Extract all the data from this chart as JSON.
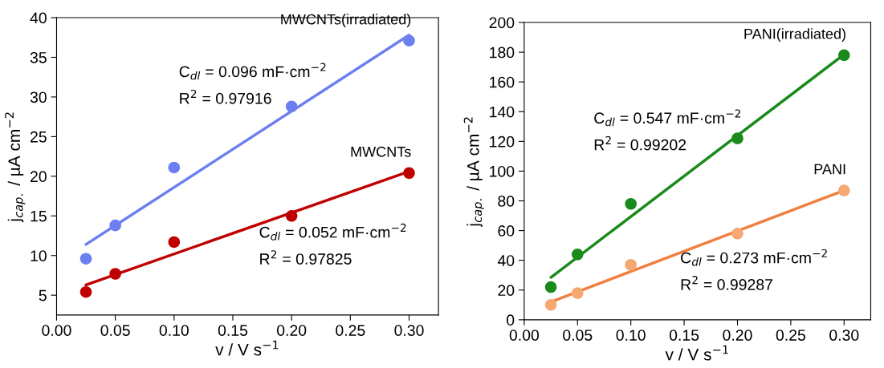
{
  "chart_data": [
    {
      "type": "scatter",
      "xlabel": "v / V s$^{−1}$",
      "ylabel": "j$_{cap.}$ / µA cm$^{−2}$",
      "xlim": [
        0,
        0.325
      ],
      "ylim": [
        2.5,
        40
      ],
      "xticks": [
        {
          "value": 0,
          "label": "0.00"
        },
        0.05,
        {
          "value": 0.1,
          "label": "0.10"
        },
        0.15,
        {
          "value": 0.2,
          "label": "0.20"
        },
        0.25,
        {
          "value": 0.3,
          "label": "0.30"
        }
      ],
      "yticks": [
        5,
        10,
        15,
        20,
        25,
        30,
        35,
        40
      ],
      "grid": false,
      "legend": false,
      "marker": "circle",
      "annotations": [
        "C$_{dl}$ = 0.096 mF·cm$^{−2}$",
        "R$^{2}$ = 0.97916",
        "C$_{dl}$ = 0.052 mF·cm$^{−2}$",
        "R$^{2}$ = 0.97825"
      ],
      "series": [
        {
          "name": "MWCNTs(irradiated)",
          "color": "#6b7ff0",
          "x": [
            0.025,
            0.05,
            0.1,
            0.2,
            0.3
          ],
          "values": [
            9.6,
            13.8,
            21.1,
            28.8,
            37.1
          ]
        },
        {
          "name": "MWCNTs",
          "color": "#c00000",
          "x": [
            0.025,
            0.05,
            0.1,
            0.2,
            0.3
          ],
          "values": [
            5.4,
            7.7,
            11.7,
            15.0,
            20.4
          ]
        },
        {
          "type": "line",
          "marker": "none",
          "color": "#6b7ff0",
          "x": [
            0.025,
            0.3
          ],
          "values": [
            11.4,
            37.8
          ]
        },
        {
          "type": "line",
          "marker": "none",
          "color": "#c00000",
          "x": [
            0.025,
            0.3
          ],
          "values": [
            6.3,
            20.6
          ]
        }
      ]
    },
    {
      "type": "scatter",
      "xlabel": "v / V s$^{−1}$",
      "ylabel": "j$_{cap.}$ / µA cm$^{−2}$",
      "xlim": [
        0,
        0.325
      ],
      "ylim": [
        0,
        200
      ],
      "xticks": [
        {
          "value": 0,
          "label": "0.00"
        },
        0.05,
        {
          "value": 0.1,
          "label": "0.10"
        },
        0.15,
        {
          "value": 0.2,
          "label": "0.20"
        },
        0.25,
        {
          "value": 0.3,
          "label": "0.30"
        }
      ],
      "yticks": [
        0,
        20,
        40,
        60,
        80,
        100,
        120,
        140,
        160,
        180,
        200
      ],
      "grid": false,
      "legend": false,
      "marker": "circle",
      "annotations": [
        "C$_{dl}$ = 0.547 mF·cm$^{−2}$",
        "R$^{2}$ = 0.99202",
        "C$_{dl}$ = 0.273 mF·cm$^{−2}$",
        "R$^{2}$ = 0.99287"
      ],
      "series": [
        {
          "name": "PANI(irradiated)",
          "color": "#1a8a1a",
          "x": [
            0.025,
            0.05,
            0.1,
            0.2,
            0.3
          ],
          "values": [
            22,
            44,
            78,
            122,
            178
          ]
        },
        {
          "name": "PANI",
          "color": "#f5a870",
          "x": [
            0.025,
            0.05,
            0.1,
            0.2,
            0.3
          ],
          "values": [
            10,
            18,
            37,
            58,
            87
          ]
        },
        {
          "type": "line",
          "marker": "none",
          "color": "#1a8a1a",
          "x": [
            0.025,
            0.3
          ],
          "values": [
            28.5,
            178.5
          ]
        },
        {
          "type": "line",
          "marker": "none",
          "color": "#f07f40",
          "x": [
            0.025,
            0.3
          ],
          "values": [
            12,
            87
          ]
        }
      ]
    }
  ]
}
